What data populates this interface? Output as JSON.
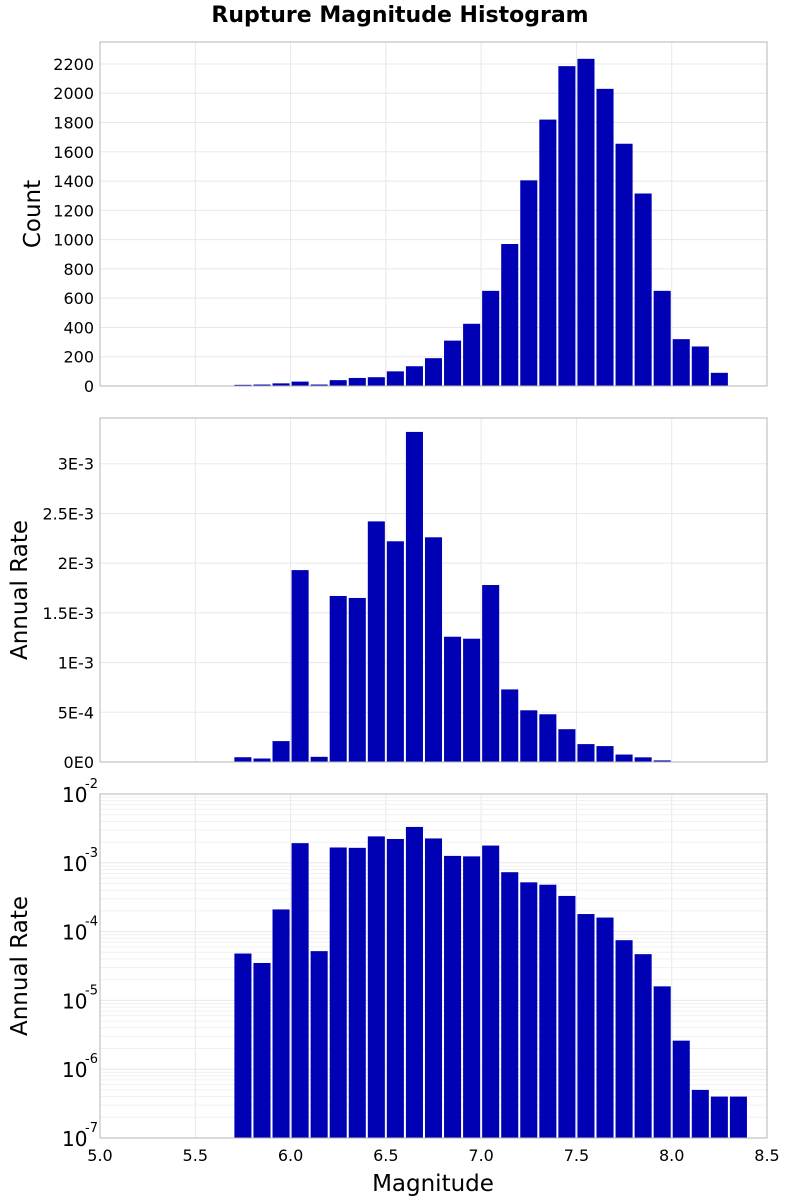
{
  "chart_data": {
    "title": "Rupture Magnitude Histogram",
    "xlabel": "Magnitude",
    "xlim": [
      5.0,
      8.5
    ],
    "xticks": [
      "5.0",
      "5.5",
      "6.0",
      "6.5",
      "7.0",
      "7.5",
      "8.0",
      "8.5"
    ],
    "bar_color": "#0000b4",
    "bin_width": 0.1,
    "grid": true,
    "panels": [
      {
        "type": "bar",
        "ylabel": "Count",
        "yscale": "linear",
        "ylim": [
          0,
          2350
        ],
        "yticks": [
          "0",
          "200",
          "400",
          "600",
          "800",
          "1000",
          "1200",
          "1400",
          "1600",
          "1800",
          "2000",
          "2200"
        ],
        "x": [
          5.75,
          5.85,
          5.95,
          6.05,
          6.15,
          6.25,
          6.35,
          6.45,
          6.55,
          6.65,
          6.75,
          6.85,
          6.95,
          7.05,
          7.15,
          7.25,
          7.35,
          7.45,
          7.55,
          7.65,
          7.75,
          7.85,
          7.95,
          8.05,
          8.15,
          8.25
        ],
        "values": [
          8,
          10,
          18,
          30,
          10,
          40,
          55,
          60,
          100,
          135,
          190,
          310,
          425,
          650,
          970,
          1405,
          1820,
          2185,
          2235,
          2030,
          1655,
          1315,
          650,
          320,
          270,
          90
        ]
      },
      {
        "type": "bar",
        "ylabel": "Annual Rate",
        "yscale": "linear",
        "ylim": [
          0,
          0.00346
        ],
        "yticks": [
          "0E0",
          "5E-4",
          "1E-3",
          "1.5E-3",
          "2E-3",
          "2.5E-3",
          "3E-3"
        ],
        "x": [
          5.75,
          5.85,
          5.95,
          6.05,
          6.15,
          6.25,
          6.35,
          6.45,
          6.55,
          6.65,
          6.75,
          6.85,
          6.95,
          7.05,
          7.15,
          7.25,
          7.35,
          7.45,
          7.55,
          7.65,
          7.75,
          7.85,
          7.95,
          8.05,
          8.15,
          8.25,
          8.35
        ],
        "values": [
          4.8e-05,
          3.5e-05,
          0.00021,
          0.00193,
          5.2e-05,
          0.00167,
          0.00165,
          0.00242,
          0.00222,
          0.00332,
          0.00226,
          0.00126,
          0.00124,
          0.00178,
          0.00073,
          0.00052,
          0.00048,
          0.00033,
          0.00018,
          0.00016,
          7.5e-05,
          4.7e-05,
          1.6e-05,
          2.6e-06,
          5e-07,
          4e-07,
          4e-07
        ]
      },
      {
        "type": "bar",
        "ylabel": "Annual Rate",
        "yscale": "log",
        "ylim": [
          1e-07,
          0.01
        ],
        "yticks": [
          {
            "base": "10",
            "exp": "-7"
          },
          {
            "base": "10",
            "exp": "-6"
          },
          {
            "base": "10",
            "exp": "-5"
          },
          {
            "base": "10",
            "exp": "-4"
          },
          {
            "base": "10",
            "exp": "-3"
          },
          {
            "base": "10",
            "exp": "-2"
          }
        ],
        "x": [
          5.75,
          5.85,
          5.95,
          6.05,
          6.15,
          6.25,
          6.35,
          6.45,
          6.55,
          6.65,
          6.75,
          6.85,
          6.95,
          7.05,
          7.15,
          7.25,
          7.35,
          7.45,
          7.55,
          7.65,
          7.75,
          7.85,
          7.95,
          8.05,
          8.15,
          8.25,
          8.35
        ],
        "values": [
          4.8e-05,
          3.5e-05,
          0.00021,
          0.00193,
          5.2e-05,
          0.00167,
          0.00165,
          0.00242,
          0.00222,
          0.00332,
          0.00226,
          0.00126,
          0.00124,
          0.00178,
          0.00073,
          0.00052,
          0.00048,
          0.00033,
          0.00018,
          0.00016,
          7.5e-05,
          4.7e-05,
          1.6e-05,
          2.6e-06,
          5e-07,
          4e-07,
          4e-07
        ]
      }
    ]
  }
}
